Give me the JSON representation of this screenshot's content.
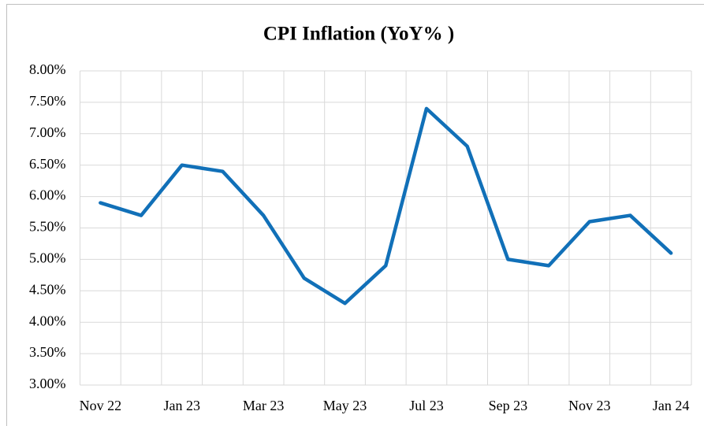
{
  "chart_data": {
    "type": "line",
    "title": "CPI Inflation (YoY% )",
    "categories": [
      "Nov 22",
      null,
      "Jan 23",
      null,
      "Mar 23",
      null,
      "May 23",
      null,
      "Jul 23",
      null,
      "Sep 23",
      null,
      "Nov 23",
      null,
      "Jan 24"
    ],
    "series": [
      {
        "name": "CPI Inflation",
        "color": "#1170b8",
        "values": [
          5.9,
          5.7,
          6.5,
          6.4,
          5.7,
          4.7,
          4.3,
          4.9,
          7.4,
          6.8,
          5.0,
          4.9,
          5.6,
          5.7,
          5.1
        ]
      }
    ],
    "ylim": [
      3,
      8
    ],
    "yticks": [
      {
        "value": 3,
        "label": "3.00%"
      },
      {
        "value": 3.5,
        "label": "3.50%"
      },
      {
        "value": 4,
        "label": "4.00%"
      },
      {
        "value": 4.5,
        "label": "4.50%"
      },
      {
        "value": 5,
        "label": "5.00%"
      },
      {
        "value": 5.5,
        "label": "5.50%"
      },
      {
        "value": 6,
        "label": "6.00%"
      },
      {
        "value": 6.5,
        "label": "6.50%"
      },
      {
        "value": 7,
        "label": "7.00%"
      },
      {
        "value": 7.5,
        "label": "7.50%"
      },
      {
        "value": 8,
        "label": "8.00%"
      }
    ],
    "grid": true
  }
}
